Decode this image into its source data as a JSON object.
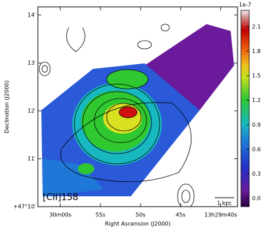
{
  "chart_data": {
    "type": "image",
    "xlabel": "Right Ascension (J2000)",
    "ylabel": "Declination (J2000)",
    "xlim": [
      62.8,
      37.9
    ],
    "xticks": [
      {
        "value": 60,
        "label": "30m00s"
      },
      {
        "value": 55,
        "label": "55s"
      },
      {
        "value": 50,
        "label": "50s"
      },
      {
        "value": 45,
        "label": "45s"
      },
      {
        "value": 40,
        "label": "13h29m40s"
      }
    ],
    "ylim": [
      10,
      14.17
    ],
    "yticks": [
      {
        "value": 10,
        "label": "+47°10′"
      },
      {
        "value": 11,
        "label": "11′"
      },
      {
        "value": 12,
        "label": "12′"
      },
      {
        "value": 13,
        "label": "13′"
      },
      {
        "value": 14,
        "label": "14′"
      }
    ],
    "colorbar": {
      "lim": [
        -0.1,
        2.3
      ],
      "ticks": [
        {
          "value": 0,
          "label": "0.0"
        },
        0.3,
        0.6,
        0.9,
        1.2,
        1.5,
        1.8,
        2.1
      ],
      "offset_label": "1e-7"
    },
    "annotations": [
      "[CII]158",
      "1 kpc"
    ]
  }
}
